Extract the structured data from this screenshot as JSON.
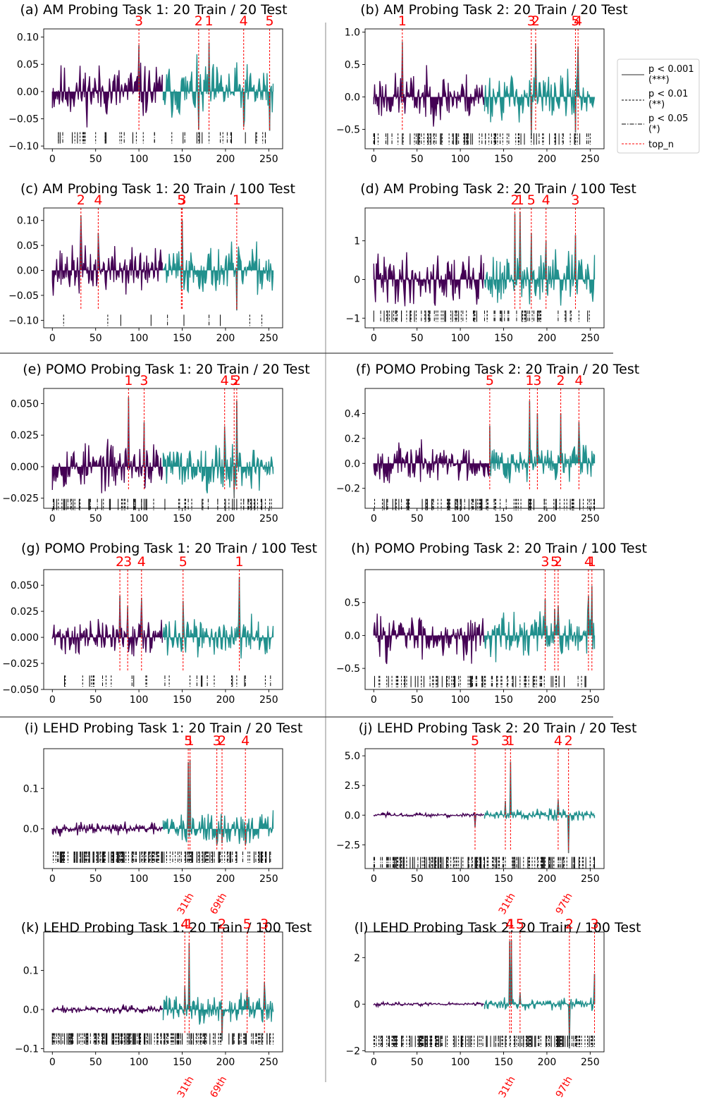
{
  "colors": {
    "purple": "#440154",
    "teal": "#21908d",
    "red": "#ff0000",
    "sig": "#000000"
  },
  "legend": {
    "items": [
      {
        "label": "p < 0.001",
        "sub": "(***)",
        "style": "solid"
      },
      {
        "label": "p < 0.01",
        "sub": "(**)",
        "style": "dashed"
      },
      {
        "label": "p < 0.05",
        "sub": "(*)",
        "style": "dashdot"
      },
      {
        "label": "top_n",
        "sub": "",
        "style": "red-dashed"
      }
    ]
  },
  "chart_data": [
    {
      "type": "bar",
      "title": "(a) AM Probing Task 1: 20 Train / 20 Test",
      "ylim": [
        -0.105,
        0.115
      ],
      "yticks": [
        -0.1,
        -0.05,
        0.0,
        0.05,
        0.1
      ],
      "yticklabels": [
        "−0.10",
        "−0.05",
        "0.00",
        "0.05",
        "0.10"
      ],
      "xlim": [
        -10,
        266
      ],
      "xticks": [
        0,
        50,
        100,
        150,
        200,
        250
      ],
      "amp": 0.03,
      "split": 128,
      "seed": 11,
      "top_n": [
        {
          "rank": "1",
          "dim": 181
        },
        {
          "rank": "2",
          "dim": 169
        },
        {
          "rank": "3",
          "dim": 100
        },
        {
          "rank": "4",
          "dim": 221
        },
        {
          "rank": "5",
          "dim": 251
        }
      ],
      "peaks": [
        {
          "dim": 100,
          "value": 0.085
        },
        {
          "dim": 181,
          "value": 0.09
        },
        {
          "dim": 169,
          "value": -0.07
        },
        {
          "dim": 221,
          "value": -0.065
        },
        {
          "dim": 251,
          "value": -0.072
        }
      ],
      "sig_y": -0.085,
      "sig_count": 45,
      "ordinals": []
    },
    {
      "type": "bar",
      "title": "(b) AM Probing Task 2: 20 Train / 20 Test",
      "ylim": [
        -0.8,
        1.05
      ],
      "yticks": [
        -0.5,
        0.0,
        0.5,
        1.0
      ],
      "yticklabels": [
        "−0.5",
        "0.0",
        "0.5",
        "1.0"
      ],
      "xlim": [
        -10,
        266
      ],
      "xticks": [
        0,
        50,
        100,
        150,
        200,
        250
      ],
      "amp": 0.22,
      "split": 128,
      "seed": 23,
      "top_n": [
        {
          "rank": "1",
          "dim": 33
        },
        {
          "rank": "2",
          "dim": 187
        },
        {
          "rank": "3",
          "dim": 182
        },
        {
          "rank": "4",
          "dim": 236
        },
        {
          "rank": "5",
          "dim": 233
        }
      ],
      "peaks": [
        {
          "dim": 33,
          "value": 0.85
        },
        {
          "dim": 187,
          "value": 0.82
        },
        {
          "dim": 182,
          "value": -0.65
        },
        {
          "dim": 236,
          "value": 0.78
        },
        {
          "dim": 233,
          "value": -0.55
        }
      ],
      "sig_y": -0.65,
      "sig_count": 95,
      "ordinals": []
    },
    {
      "type": "bar",
      "title": "(c) AM Probing Task 1: 20 Train / 100 Test",
      "ylim": [
        -0.115,
        0.125
      ],
      "yticks": [
        -0.1,
        -0.05,
        0.0,
        0.05,
        0.1
      ],
      "yticklabels": [
        "−0.10",
        "−0.05",
        "0.00",
        "0.05",
        "0.10"
      ],
      "xlim": [
        -10,
        266
      ],
      "xticks": [
        0,
        50,
        100,
        150,
        200,
        250
      ],
      "amp": 0.028,
      "split": 128,
      "seed": 37,
      "top_n": [
        {
          "rank": "1",
          "dim": 213
        },
        {
          "rank": "2",
          "dim": 33
        },
        {
          "rank": "3",
          "dim": 150
        },
        {
          "rank": "4",
          "dim": 53
        },
        {
          "rank": "5",
          "dim": 149
        }
      ],
      "peaks": [
        {
          "dim": 33,
          "value": 0.11
        },
        {
          "dim": 53,
          "value": 0.075
        },
        {
          "dim": 150,
          "value": 0.1
        },
        {
          "dim": 213,
          "value": -0.08
        }
      ],
      "sig_y": -0.1,
      "sig_count": 10,
      "ordinals": []
    },
    {
      "type": "bar",
      "title": "(d) AM Probing Task 2: 20 Train / 100 Test",
      "ylim": [
        -1.25,
        1.85
      ],
      "yticks": [
        -1,
        0,
        1
      ],
      "yticklabels": [
        "−1",
        "0",
        "1"
      ],
      "xlim": [
        -10,
        266
      ],
      "xticks": [
        0,
        50,
        100,
        150,
        200,
        250
      ],
      "amp": 0.4,
      "split": 128,
      "seed": 41,
      "top_n": [
        {
          "rank": "1",
          "dim": 169
        },
        {
          "rank": "2",
          "dim": 163
        },
        {
          "rank": "3",
          "dim": 233
        },
        {
          "rank": "4",
          "dim": 199
        },
        {
          "rank": "5",
          "dim": 182
        }
      ],
      "peaks": [
        {
          "dim": 163,
          "value": 1.7
        },
        {
          "dim": 169,
          "value": 1.75
        },
        {
          "dim": 182,
          "value": 1.2
        },
        {
          "dim": 199,
          "value": 1.0
        },
        {
          "dim": 233,
          "value": 1.15
        }
      ],
      "sig_y": -0.95,
      "sig_count": 85,
      "ordinals": []
    },
    {
      "type": "bar",
      "title": "(e) POMO Probing Task 1: 20 Train / 20 Test",
      "ylim": [
        -0.033,
        0.062
      ],
      "yticks": [
        -0.025,
        0.0,
        0.025,
        0.05
      ],
      "yticklabels": [
        "−0.025",
        "0.000",
        "0.025",
        "0.050"
      ],
      "xlim": [
        -10,
        266
      ],
      "xticks": [
        0,
        50,
        100,
        150,
        200,
        250
      ],
      "amp": 0.011,
      "split": 128,
      "seed": 53,
      "top_n": [
        {
          "rank": "1",
          "dim": 88
        },
        {
          "rank": "2",
          "dim": 213
        },
        {
          "rank": "3",
          "dim": 106
        },
        {
          "rank": "4",
          "dim": 199
        },
        {
          "rank": "5",
          "dim": 210
        }
      ],
      "peaks": [
        {
          "dim": 88,
          "value": 0.055
        },
        {
          "dim": 106,
          "value": 0.035
        },
        {
          "dim": 199,
          "value": 0.032
        },
        {
          "dim": 213,
          "value": 0.052
        },
        {
          "dim": 210,
          "value": -0.025
        }
      ],
      "sig_y": -0.03,
      "sig_count": 80,
      "ordinals": []
    },
    {
      "type": "bar",
      "title": "(f) POMO Probing Task 2: 20 Train / 20 Test",
      "ylim": [
        -0.36,
        0.6
      ],
      "yticks": [
        -0.2,
        0.0,
        0.2,
        0.4
      ],
      "yticklabels": [
        "−0.2",
        "0.0",
        "0.2",
        "0.4"
      ],
      "xlim": [
        -10,
        266
      ],
      "xticks": [
        0,
        50,
        100,
        150,
        200,
        250
      ],
      "amp": 0.09,
      "split": 134,
      "seed": 67,
      "top_n": [
        {
          "rank": "1",
          "dim": 180
        },
        {
          "rank": "2",
          "dim": 216
        },
        {
          "rank": "3",
          "dim": 189
        },
        {
          "rank": "4",
          "dim": 237
        },
        {
          "rank": "5",
          "dim": 134
        }
      ],
      "peaks": [
        {
          "dim": 134,
          "value": 0.3
        },
        {
          "dim": 180,
          "value": 0.5
        },
        {
          "dim": 189,
          "value": 0.4
        },
        {
          "dim": 216,
          "value": 0.4
        },
        {
          "dim": 237,
          "value": 0.33
        }
      ],
      "sig_y": -0.33,
      "sig_count": 100,
      "ordinals": []
    },
    {
      "type": "bar",
      "title": "(g) POMO Probing Task 1: 20 Train / 100 Test",
      "ylim": [
        -0.05,
        0.065
      ],
      "yticks": [
        -0.05,
        -0.025,
        0.0,
        0.025,
        0.05
      ],
      "yticklabels": [
        "−0.050",
        "−0.025",
        "0.000",
        "0.025",
        "0.050"
      ],
      "xlim": [
        -10,
        266
      ],
      "xticks": [
        0,
        50,
        100,
        150,
        200,
        250
      ],
      "amp": 0.01,
      "split": 128,
      "seed": 71,
      "top_n": [
        {
          "rank": "1",
          "dim": 216
        },
        {
          "rank": "2",
          "dim": 78
        },
        {
          "rank": "3",
          "dim": 87
        },
        {
          "rank": "4",
          "dim": 103
        },
        {
          "rank": "5",
          "dim": 151
        }
      ],
      "peaks": [
        {
          "dim": 78,
          "value": 0.04
        },
        {
          "dim": 87,
          "value": 0.03
        },
        {
          "dim": 103,
          "value": 0.038
        },
        {
          "dim": 151,
          "value": 0.035
        },
        {
          "dim": 216,
          "value": 0.058
        }
      ],
      "sig_y": -0.042,
      "sig_count": 30,
      "ordinals": []
    },
    {
      "type": "bar",
      "title": "(h) POMO Probing Task 2: 20 Train / 100 Test",
      "ylim": [
        -0.82,
        1.0
      ],
      "yticks": [
        -0.5,
        0.0,
        0.5
      ],
      "yticklabels": [
        "−0.5",
        "0.0",
        "0.5"
      ],
      "xlim": [
        -10,
        266
      ],
      "xticks": [
        0,
        50,
        100,
        150,
        200,
        250
      ],
      "amp": 0.2,
      "split": 128,
      "seed": 83,
      "top_n": [
        {
          "rank": "1",
          "dim": 252
        },
        {
          "rank": "2",
          "dim": 213
        },
        {
          "rank": "3",
          "dim": 198
        },
        {
          "rank": "4",
          "dim": 248
        },
        {
          "rank": "5",
          "dim": 209
        }
      ],
      "peaks": [
        {
          "dim": 198,
          "value": 0.55
        },
        {
          "dim": 209,
          "value": 0.4
        },
        {
          "dim": 213,
          "value": 0.45
        },
        {
          "dim": 248,
          "value": 0.6
        },
        {
          "dim": 252,
          "value": 0.75
        }
      ],
      "sig_y": -0.7,
      "sig_count": 90,
      "ordinals": []
    },
    {
      "type": "bar",
      "title": "(i) LEHD Probing Task 1: 20 Train / 20 Test",
      "ylim": [
        -0.098,
        0.198
      ],
      "yticks": [
        0.0,
        0.1
      ],
      "yticklabels": [
        "0.0",
        "0.1"
      ],
      "xlim": [
        -10,
        266
      ],
      "xticks": [
        0,
        50,
        100,
        150,
        200,
        250
      ],
      "amp": 0.008,
      "amp2": 0.025,
      "split": 128,
      "seed": 97,
      "top_n": [
        {
          "rank": "1",
          "dim": 159
        },
        {
          "rank": "2",
          "dim": 196
        },
        {
          "rank": "3",
          "dim": 190
        },
        {
          "rank": "4",
          "dim": 223
        },
        {
          "rank": "5",
          "dim": 157
        }
      ],
      "peaks": [
        {
          "dim": 157,
          "value": 0.165
        },
        {
          "dim": 159,
          "value": 0.17
        },
        {
          "dim": 190,
          "value": -0.04
        },
        {
          "dim": 196,
          "value": -0.035
        },
        {
          "dim": 223,
          "value": -0.04
        }
      ],
      "sig_y": -0.07,
      "sig_count": 180,
      "ordinals": [
        {
          "label": "31th",
          "dim": 157
        },
        {
          "label": "69th",
          "dim": 195
        }
      ]
    },
    {
      "type": "bar",
      "title": "(j) LEHD Probing Task 2: 20 Train / 20 Test",
      "ylim": [
        -4.5,
        5.6
      ],
      "yticks": [
        -2.5,
        0.0,
        2.5,
        5.0
      ],
      "yticklabels": [
        "−2.5",
        "0.0",
        "2.5",
        "5.0"
      ],
      "xlim": [
        -10,
        266
      ],
      "xticks": [
        0,
        50,
        100,
        150,
        200,
        250
      ],
      "amp": 0.12,
      "amp2": 0.3,
      "split": 128,
      "seed": 103,
      "top_n": [
        {
          "rank": "1",
          "dim": 158
        },
        {
          "rank": "2",
          "dim": 225
        },
        {
          "rank": "3",
          "dim": 152
        },
        {
          "rank": "4",
          "dim": 213
        },
        {
          "rank": "5",
          "dim": 117
        }
      ],
      "peaks": [
        {
          "dim": 117,
          "value": -1.0
        },
        {
          "dim": 152,
          "value": 1.2
        },
        {
          "dim": 158,
          "value": 4.5
        },
        {
          "dim": 213,
          "value": 1.3
        },
        {
          "dim": 225,
          "value": -3.2
        }
      ],
      "sig_y": -4.0,
      "sig_count": 170,
      "ordinals": [
        {
          "label": "31th",
          "dim": 157
        },
        {
          "label": "97th",
          "dim": 223
        }
      ]
    },
    {
      "type": "bar",
      "title": "(k) LEHD Probing Task 1: 20 Train / 100 Test",
      "ylim": [
        -0.108,
        0.198
      ],
      "yticks": [
        -0.1,
        0.0,
        0.1
      ],
      "yticklabels": [
        "−0.1",
        "0.0",
        "0.1"
      ],
      "xlim": [
        -10,
        266
      ],
      "xticks": [
        0,
        50,
        100,
        150,
        200,
        250
      ],
      "amp": 0.006,
      "amp2": 0.022,
      "split": 128,
      "seed": 109,
      "top_n": [
        {
          "rank": "1",
          "dim": 158
        },
        {
          "rank": "2",
          "dim": 196
        },
        {
          "rank": "3",
          "dim": 245
        },
        {
          "rank": "4",
          "dim": 153
        },
        {
          "rank": "5",
          "dim": 225
        }
      ],
      "peaks": [
        {
          "dim": 153,
          "value": 0.06
        },
        {
          "dim": 158,
          "value": 0.17
        },
        {
          "dim": 196,
          "value": -0.08
        },
        {
          "dim": 225,
          "value": 0.05
        },
        {
          "dim": 245,
          "value": 0.07
        }
      ],
      "sig_y": -0.075,
      "sig_count": 190,
      "ordinals": [
        {
          "label": "31th",
          "dim": 157
        },
        {
          "label": "69th",
          "dim": 195
        }
      ]
    },
    {
      "type": "bar",
      "title": "(l) LEHD Probing Task 2: 20 Train / 100 Test",
      "ylim": [
        -2.05,
        3.1
      ],
      "yticks": [
        -2,
        0,
        2
      ],
      "yticklabels": [
        "−2",
        "0",
        "2"
      ],
      "xlim": [
        -10,
        266
      ],
      "xticks": [
        0,
        50,
        100,
        150,
        200,
        250
      ],
      "amp": 0.05,
      "amp2": 0.15,
      "split": 128,
      "seed": 113,
      "top_n": [
        {
          "rank": "1",
          "dim": 159
        },
        {
          "rank": "2",
          "dim": 226
        },
        {
          "rank": "3",
          "dim": 255
        },
        {
          "rank": "4",
          "dim": 157
        },
        {
          "rank": "5",
          "dim": 169
        }
      ],
      "peaks": [
        {
          "dim": 157,
          "value": 2.7
        },
        {
          "dim": 159,
          "value": 2.75
        },
        {
          "dim": 169,
          "value": 0.5
        },
        {
          "dim": 226,
          "value": -1.9
        },
        {
          "dim": 255,
          "value": 1.3
        }
      ],
      "sig_y": -1.6,
      "sig_count": 180,
      "ordinals": [
        {
          "label": "31th",
          "dim": 157
        },
        {
          "label": "97th",
          "dim": 223
        }
      ]
    }
  ]
}
